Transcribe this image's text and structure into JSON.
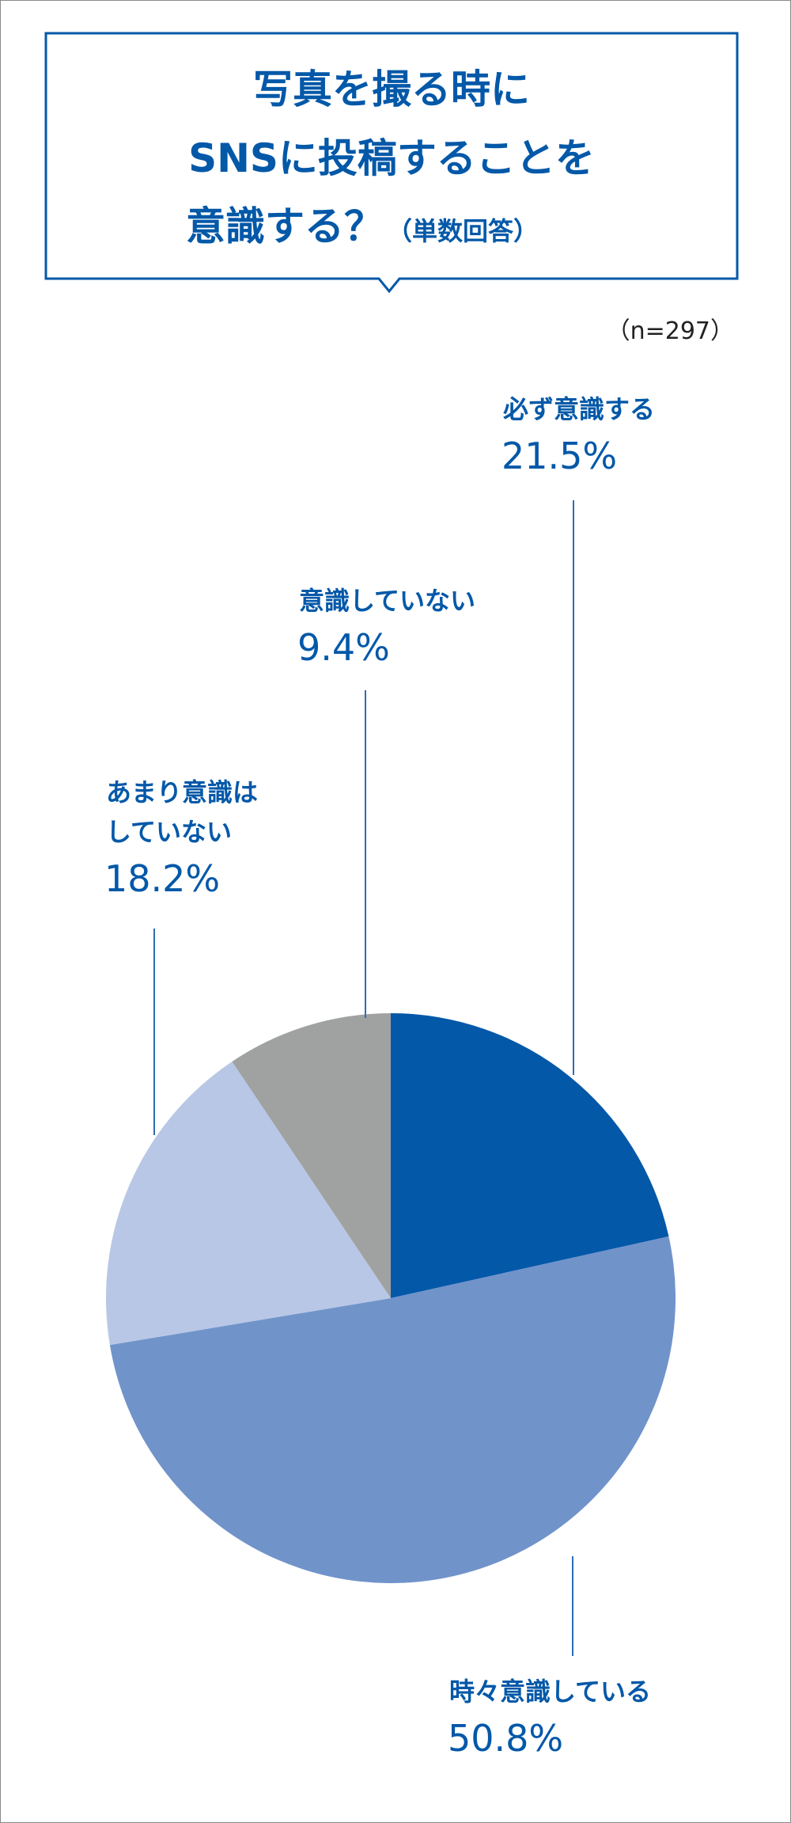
{
  "colors": {
    "brand_blue": "#0358a8",
    "border_gray": "#8a8a8a",
    "leader_line": "#2f6db5"
  },
  "chart_data": {
    "type": "pie",
    "title_lines": [
      "写真を撮る時に",
      "SNSに投稿することを",
      "意識する？"
    ],
    "title_note": "（単数回答）",
    "sample_size": "（n=297）",
    "start_angle_deg": 0,
    "direction": "clockwise",
    "slices": [
      {
        "label": "必ず意識する",
        "label_lines": [
          "必ず意識する"
        ],
        "value": 21.5,
        "value_text": "21.5%",
        "color": "#0358a8"
      },
      {
        "label": "時々意識している",
        "label_lines": [
          "時々意識している"
        ],
        "value": 50.8,
        "value_text": "50.8%",
        "color": "#7093ca"
      },
      {
        "label": "あまり意識はしていない",
        "label_lines": [
          "あまり意識は",
          "していない"
        ],
        "value": 18.2,
        "value_text": "18.2%",
        "color": "#b8c7e5"
      },
      {
        "label": "意識していない",
        "label_lines": [
          "意識していない"
        ],
        "value": 9.4,
        "value_text": "9.4%",
        "color": "#a0a2a2"
      }
    ]
  }
}
